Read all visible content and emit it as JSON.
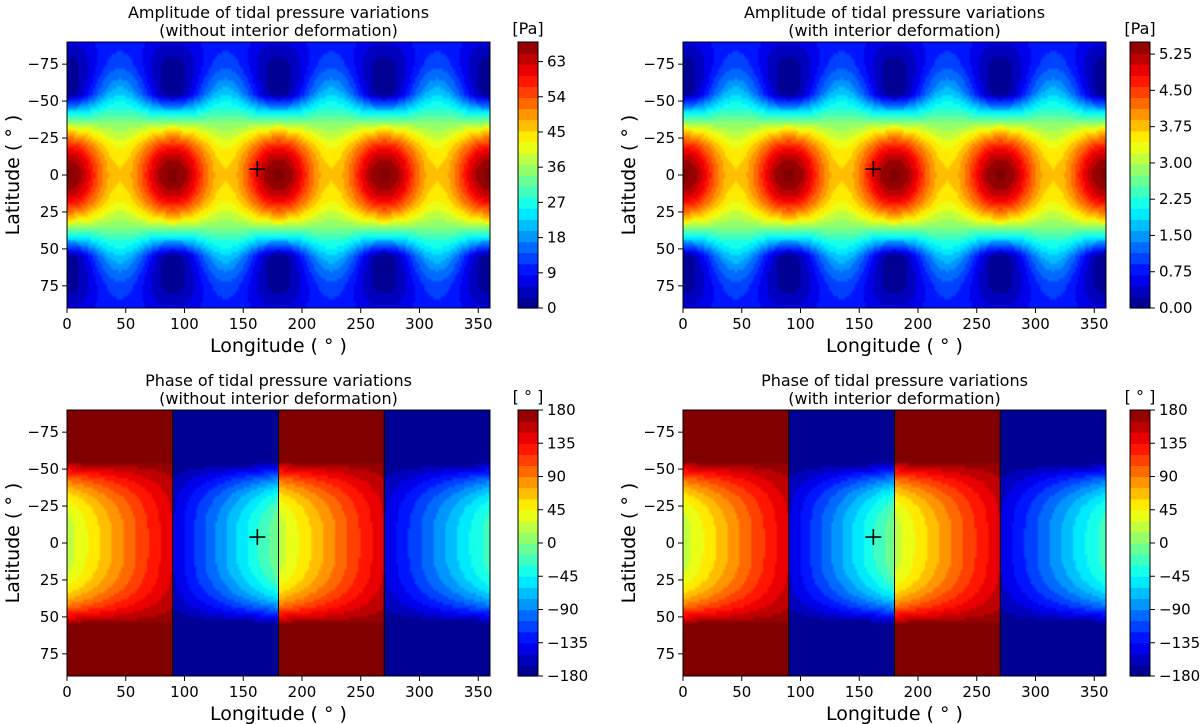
{
  "chart_data": [
    {
      "type": "heatmap",
      "title": "Amplitude of tidal pressure variations\n(without interior deformation)",
      "xlabel": "Longitude ( ° )",
      "ylabel": "Latitude ( ° )",
      "xlim": [
        0,
        360
      ],
      "ylim": [
        -90,
        90
      ],
      "y_inverted": true,
      "xticks": [
        0,
        50,
        100,
        150,
        200,
        250,
        300,
        350
      ],
      "yticks": [
        -75,
        -50,
        -25,
        0,
        25,
        50,
        75
      ],
      "field": "amplitude",
      "vmin": 0,
      "vmax": 68,
      "colormap": "jet",
      "contour_levels": 24,
      "max_at_lon": [
        0,
        90,
        180,
        270
      ],
      "min_at": [
        [
          0,
          -55
        ],
        [
          180,
          -55
        ],
        [
          360,
          -55
        ],
        [
          0,
          55
        ],
        [
          180,
          55
        ],
        [
          360,
          55
        ]
      ],
      "marker": {
        "lon": 162,
        "lat": -4,
        "symbol": "+"
      },
      "colorbar": {
        "unit": "[Pa]",
        "ticks": [
          "0",
          "9",
          "18",
          "27",
          "36",
          "45",
          "54",
          "63"
        ],
        "tick_values": [
          0,
          9,
          18,
          27,
          36,
          45,
          54,
          63
        ]
      }
    },
    {
      "type": "heatmap",
      "title": "Amplitude of tidal pressure variations\n(with interior deformation)",
      "xlabel": "Longitude ( ° )",
      "ylabel": "Latitude ( ° )",
      "xlim": [
        0,
        360
      ],
      "ylim": [
        -90,
        90
      ],
      "y_inverted": true,
      "xticks": [
        0,
        50,
        100,
        150,
        200,
        250,
        300,
        350
      ],
      "yticks": [
        -75,
        -50,
        -25,
        0,
        25,
        50,
        75
      ],
      "field": "amplitude",
      "vmin": 0,
      "vmax": 5.5,
      "colormap": "jet",
      "contour_levels": 24,
      "max_at_lon": [
        0,
        90,
        180,
        270
      ],
      "min_at": [
        [
          0,
          -55
        ],
        [
          180,
          -55
        ],
        [
          360,
          -55
        ],
        [
          0,
          55
        ],
        [
          180,
          55
        ],
        [
          360,
          55
        ]
      ],
      "marker": {
        "lon": 162,
        "lat": -4,
        "symbol": "+"
      },
      "colorbar": {
        "unit": "[Pa]",
        "ticks": [
          "0.00",
          "0.75",
          "1.50",
          "2.25",
          "3.00",
          "3.75",
          "4.50",
          "5.25"
        ],
        "tick_values": [
          0,
          0.75,
          1.5,
          2.25,
          3.0,
          3.75,
          4.5,
          5.25
        ]
      }
    },
    {
      "type": "heatmap",
      "title": "Phase of tidal pressure variations\n(without interior deformation)",
      "xlabel": "Longitude ( ° )",
      "ylabel": "Latitude ( ° )",
      "xlim": [
        0,
        360
      ],
      "ylim": [
        -90,
        90
      ],
      "y_inverted": true,
      "xticks": [
        0,
        50,
        100,
        150,
        200,
        250,
        300,
        350
      ],
      "yticks": [
        -75,
        -50,
        -25,
        0,
        25,
        50,
        75
      ],
      "field": "phase",
      "vmin": -180,
      "vmax": 180,
      "colormap": "jet",
      "contour_levels": 24,
      "phase_jumps_at_lon": [
        90,
        180,
        270
      ],
      "nodes_at_lat": [
        -55,
        55
      ],
      "marker": {
        "lon": 162,
        "lat": -4,
        "symbol": "+"
      },
      "colorbar": {
        "unit": "[ ° ]",
        "ticks": [
          "−180",
          "−135",
          "−90",
          "−45",
          "0",
          "45",
          "90",
          "135",
          "180"
        ],
        "tick_values": [
          -180,
          -135,
          -90,
          -45,
          0,
          45,
          90,
          135,
          180
        ]
      }
    },
    {
      "type": "heatmap",
      "title": "Phase of tidal pressure variations\n(with interior deformation)",
      "xlabel": "Longitude ( ° )",
      "ylabel": "Latitude ( ° )",
      "xlim": [
        0,
        360
      ],
      "ylim": [
        -90,
        90
      ],
      "y_inverted": true,
      "xticks": [
        0,
        50,
        100,
        150,
        200,
        250,
        300,
        350
      ],
      "yticks": [
        -75,
        -50,
        -25,
        0,
        25,
        50,
        75
      ],
      "field": "phase",
      "vmin": -180,
      "vmax": 180,
      "colormap": "jet",
      "contour_levels": 24,
      "phase_jumps_at_lon": [
        90,
        180,
        270
      ],
      "nodes_at_lat": [
        -55,
        55
      ],
      "marker": {
        "lon": 162,
        "lat": -4,
        "symbol": "+"
      },
      "colorbar": {
        "unit": "[ ° ]",
        "ticks": [
          "−180",
          "−135",
          "−90",
          "−45",
          "0",
          "45",
          "90",
          "135",
          "180"
        ],
        "tick_values": [
          -180,
          -135,
          -90,
          -45,
          0,
          45,
          90,
          135,
          180
        ]
      }
    }
  ]
}
